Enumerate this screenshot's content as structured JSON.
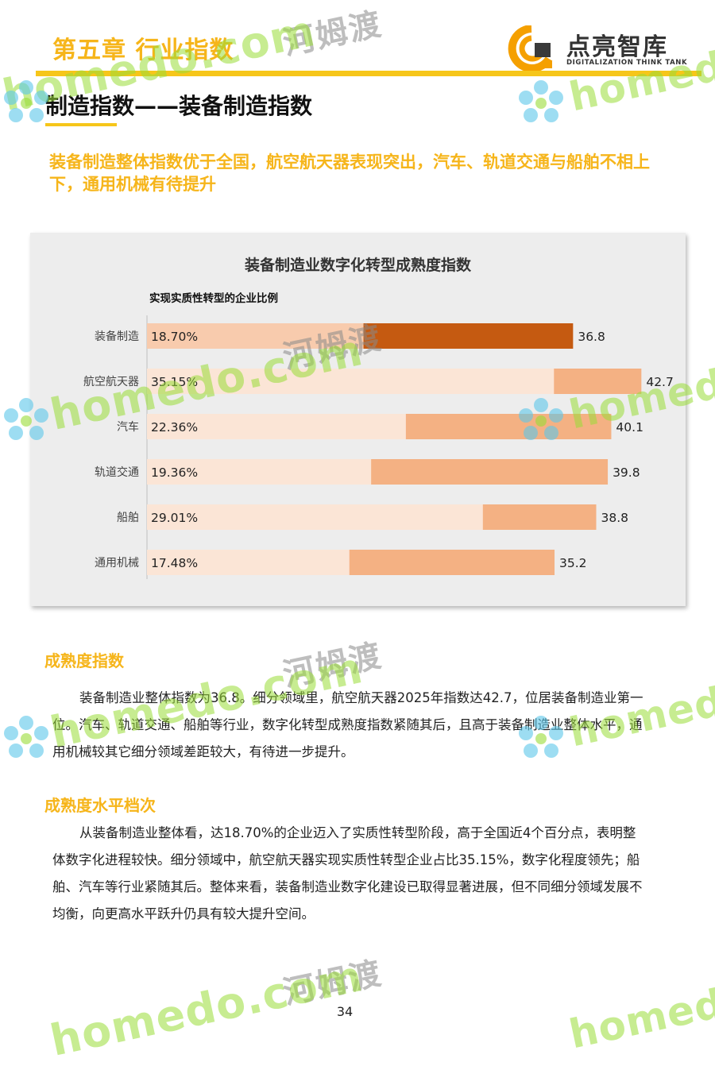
{
  "header": {
    "chapter": "第五章  行业指数",
    "logo_name": "点亮智库",
    "logo_sub": "DIGITALIZATION THINK TANK"
  },
  "section_title": "制造指数——装备制造指数",
  "headline": "装备制造整体指数优于全国，航空航天器表现突出，汽车、轨道交通与船舶不相上下，通用机械有待提升",
  "chart_data": {
    "type": "bar",
    "orientation": "horizontal",
    "title": "装备制造业数字化转型成熟度指数",
    "subtitle": "实现实质性转型的企业比例",
    "categories": [
      "装备制造",
      "航空航天器",
      "汽车",
      "轨道交通",
      "船舶",
      "通用机械"
    ],
    "series": [
      {
        "name": "实现实质性转型的企业比例",
        "values": [
          18.7,
          35.15,
          22.36,
          19.36,
          29.01,
          17.48
        ],
        "labels": [
          "18.70%",
          "35.15%",
          "22.36%",
          "19.36%",
          "29.01%",
          "17.48%"
        ]
      },
      {
        "name": "",
        "values": [
          36.8,
          42.7,
          40.1,
          39.8,
          38.8,
          35.2
        ],
        "labels": [
          "36.8",
          "42.7",
          "40.1",
          "39.8",
          "38.8",
          "35.2"
        ]
      }
    ],
    "xlim": [
      0,
      47
    ],
    "grid": false,
    "highlight_category": "装备制造",
    "colors": {
      "index_bar": "#F4B183",
      "index_bar_highlight": "#C55A11",
      "share_bar": "#FBE5D6",
      "share_bar_highlight": "#F8CBAD"
    }
  },
  "sections": [
    {
      "heading": "成熟度指数",
      "text": "装备制造业整体指数为36.8。细分领域里，航空航天器2025年指数达42.7，位居装备制造业第一位。汽车、轨道交通、船舶等行业，数字化转型成熟度指数紧随其后，且高于装备制造业整体水平，通用机械较其它细分领域差距较大，有待进一步提升。"
    },
    {
      "heading": "成熟度水平档次",
      "text": "从装备制造业整体看，达18.70%的企业迈入了实质性转型阶段，高于全国近4个百分点，表明整体数字化进程较快。细分领域中，航空航天器实现实质性转型企业占比35.15%，数字化程度领先；船舶、汽车等行业紧随其后。整体来看，装备制造业数字化建设已取得显著进展，但不同细分领域发展不均衡，向更高水平跃升仍具有较大提升空间。"
    }
  ],
  "page_number": "34",
  "watermark": {
    "cn": "河姆渡",
    "en": "homedo.com",
    "en_short": "homedo"
  }
}
